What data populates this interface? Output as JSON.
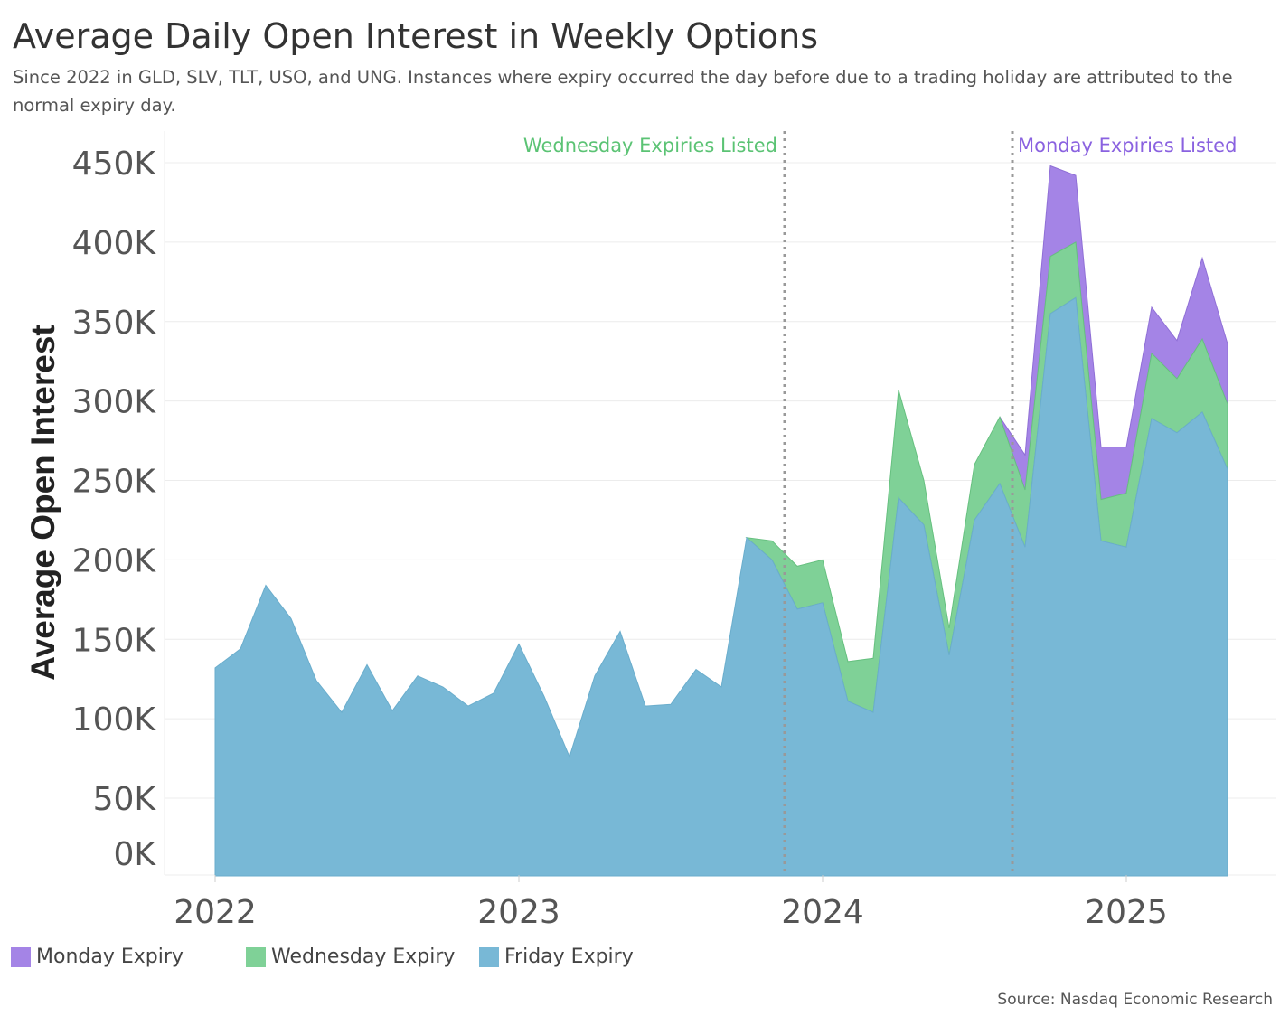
{
  "title": "Average Daily Open Interest in Weekly Options",
  "subtitle": "Since 2022 in GLD, SLV, TLT, USO, and UNG. Instances where expiry occurred the day before due to a trading holiday are attributed to the normal expiry day.",
  "source": "Source: Nasdaq Economic Research",
  "legend": {
    "monday": "Monday Expiry",
    "wednesday": "Wednesday Expiry",
    "friday": "Friday Expiry"
  },
  "colors": {
    "monday": "#a484e6",
    "wednesday": "#7fd197",
    "friday": "#78b8d6",
    "wednesday_label": "#5bc374",
    "monday_label": "#8a62e0",
    "grid": "#ececec",
    "annotation_line": "#999999"
  },
  "chart_data": {
    "type": "area",
    "stacked": true,
    "xlabel": "",
    "ylabel": "Average Open Interest",
    "ylim": [
      0,
      460000
    ],
    "yticks": [
      0,
      50000,
      100000,
      150000,
      200000,
      250000,
      300000,
      350000,
      400000,
      450000
    ],
    "ytick_labels": [
      "0K",
      "50K",
      "100K",
      "150K",
      "200K",
      "250K",
      "300K",
      "350K",
      "400K",
      "450K"
    ],
    "xlim": [
      "2022-01",
      "2025-05"
    ],
    "xticks": [
      "2022-01",
      "2023-01",
      "2024-01",
      "2025-01"
    ],
    "xtick_labels": [
      "2022",
      "2023",
      "2024",
      "2025"
    ],
    "grid": true,
    "legend_position": "bottom-left",
    "x": [
      "2022-01",
      "2022-02",
      "2022-03",
      "2022-04",
      "2022-05",
      "2022-06",
      "2022-07",
      "2022-08",
      "2022-09",
      "2022-10",
      "2022-11",
      "2022-12",
      "2023-01",
      "2023-02",
      "2023-03",
      "2023-04",
      "2023-05",
      "2023-06",
      "2023-07",
      "2023-08",
      "2023-09",
      "2023-10",
      "2023-11",
      "2023-12",
      "2024-01",
      "2024-02",
      "2024-03",
      "2024-04",
      "2024-05",
      "2024-06",
      "2024-07",
      "2024-08",
      "2024-09",
      "2024-10",
      "2024-11",
      "2024-12",
      "2025-01",
      "2025-02",
      "2025-03",
      "2025-04",
      "2025-05"
    ],
    "series": [
      {
        "name": "Friday Expiry",
        "values": [
          132000,
          144000,
          184000,
          163000,
          124000,
          104000,
          134000,
          105000,
          127000,
          120000,
          108000,
          116000,
          147000,
          114000,
          76000,
          127000,
          155000,
          108000,
          109000,
          131000,
          120000,
          214000,
          200000,
          169000,
          173000,
          111000,
          104000,
          239000,
          222000,
          140000,
          225000,
          248000,
          208000,
          355000,
          365000,
          212000,
          208000,
          289000,
          280000,
          293000,
          257000
        ]
      },
      {
        "name": "Wednesday Expiry",
        "values": [
          0,
          0,
          0,
          0,
          0,
          0,
          0,
          0,
          0,
          0,
          0,
          0,
          0,
          0,
          0,
          0,
          0,
          0,
          0,
          0,
          0,
          0,
          12000,
          27000,
          27000,
          25000,
          34000,
          68000,
          28000,
          17000,
          35000,
          42000,
          36000,
          36000,
          35000,
          26000,
          34000,
          41000,
          34000,
          46000,
          41000
        ]
      },
      {
        "name": "Monday Expiry",
        "values": [
          0,
          0,
          0,
          0,
          0,
          0,
          0,
          0,
          0,
          0,
          0,
          0,
          0,
          0,
          0,
          0,
          0,
          0,
          0,
          0,
          0,
          0,
          0,
          0,
          0,
          0,
          0,
          0,
          0,
          0,
          0,
          0,
          22000,
          57000,
          42000,
          33000,
          29000,
          29000,
          24000,
          51000,
          38000
        ]
      }
    ],
    "annotations": [
      {
        "label": "Wednesday Expiries Listed",
        "x": "2023-11"
      },
      {
        "label": "Monday Expiries Listed",
        "x": "2024-08"
      }
    ]
  }
}
